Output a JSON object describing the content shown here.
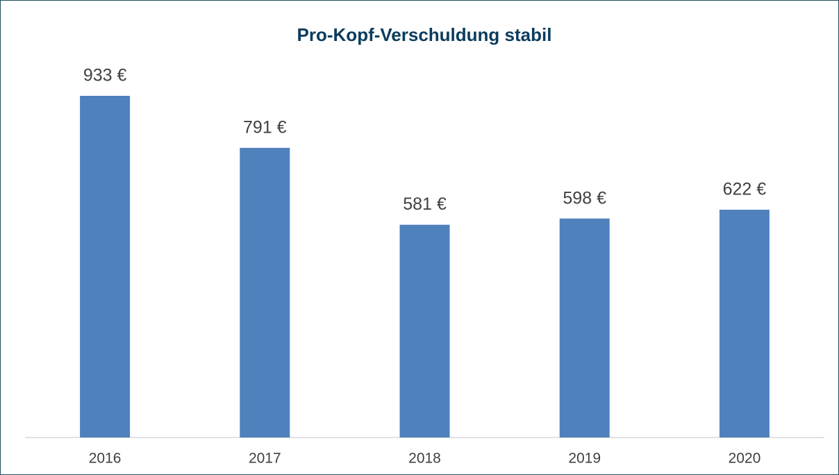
{
  "chart_data": {
    "type": "bar",
    "title": "Pro-Kopf-Verschuldung stabil",
    "categories": [
      "2016",
      "2017",
      "2018",
      "2019",
      "2020"
    ],
    "values": [
      933,
      791,
      581,
      598,
      622
    ],
    "value_labels": [
      "933 €",
      "791 €",
      "581 €",
      "598 €",
      "622 €"
    ],
    "color": "#4f81bd"
  }
}
